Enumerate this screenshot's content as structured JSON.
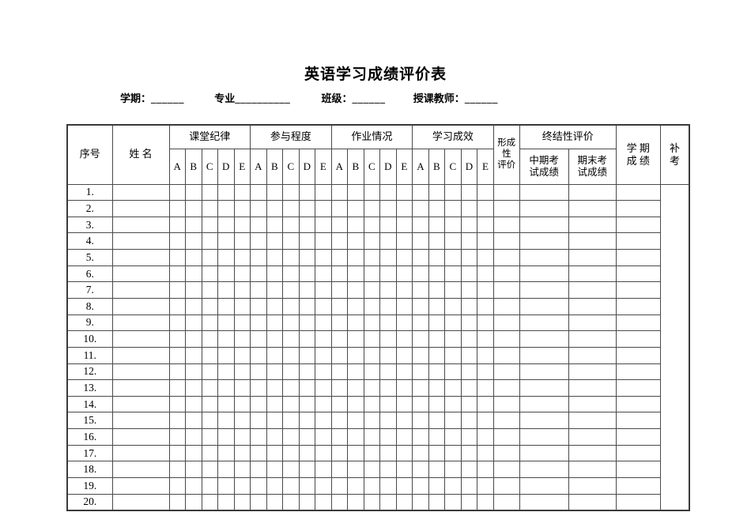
{
  "page": {
    "title": "英语学习成绩评价表"
  },
  "info_line": {
    "fields": [
      {
        "label": "学期：",
        "blank": "______"
      },
      {
        "label": "专业",
        "blank": "__________"
      },
      {
        "label": "班级：",
        "blank": "______"
      },
      {
        "label": "授课教师：",
        "blank": "______"
      }
    ]
  },
  "table": {
    "corner": {
      "serial": "序号",
      "name": "姓 名"
    },
    "groups": [
      {
        "label": "课堂纪律",
        "sub": [
          "A",
          "B",
          "C",
          "D",
          "E"
        ]
      },
      {
        "label": "参与程度",
        "sub": [
          "A",
          "B",
          "C",
          "D",
          "E"
        ]
      },
      {
        "label": "作业情况",
        "sub": [
          "A",
          "B",
          "C",
          "D",
          "E"
        ]
      },
      {
        "label": "学习成效",
        "sub": [
          "A",
          "B",
          "C",
          "D",
          "E"
        ]
      }
    ],
    "formative_lines": [
      "形成",
      "性",
      "评价"
    ],
    "summative": {
      "label": "终结性评价",
      "midterm_lines": [
        "中期考",
        "试成绩"
      ],
      "final_lines": [
        "期末考",
        "试成绩"
      ]
    },
    "semester_lines": [
      "学 期",
      "成 绩"
    ],
    "makeup_lines": [
      "补",
      "考"
    ],
    "row_numbers": [
      "1.",
      "2.",
      "3.",
      "4.",
      "5.",
      "6.",
      "7.",
      "8.",
      "9.",
      "10.",
      "11.",
      "12.",
      "13.",
      "14.",
      "15.",
      "16.",
      "17.",
      "18.",
      "19.",
      "20."
    ],
    "empty_cols_per_row": 25
  },
  "colors": {
    "background": "#ffffff",
    "text": "#000000",
    "border_inner": "#4a4a4a",
    "border_outer": "#3a3a3a"
  }
}
